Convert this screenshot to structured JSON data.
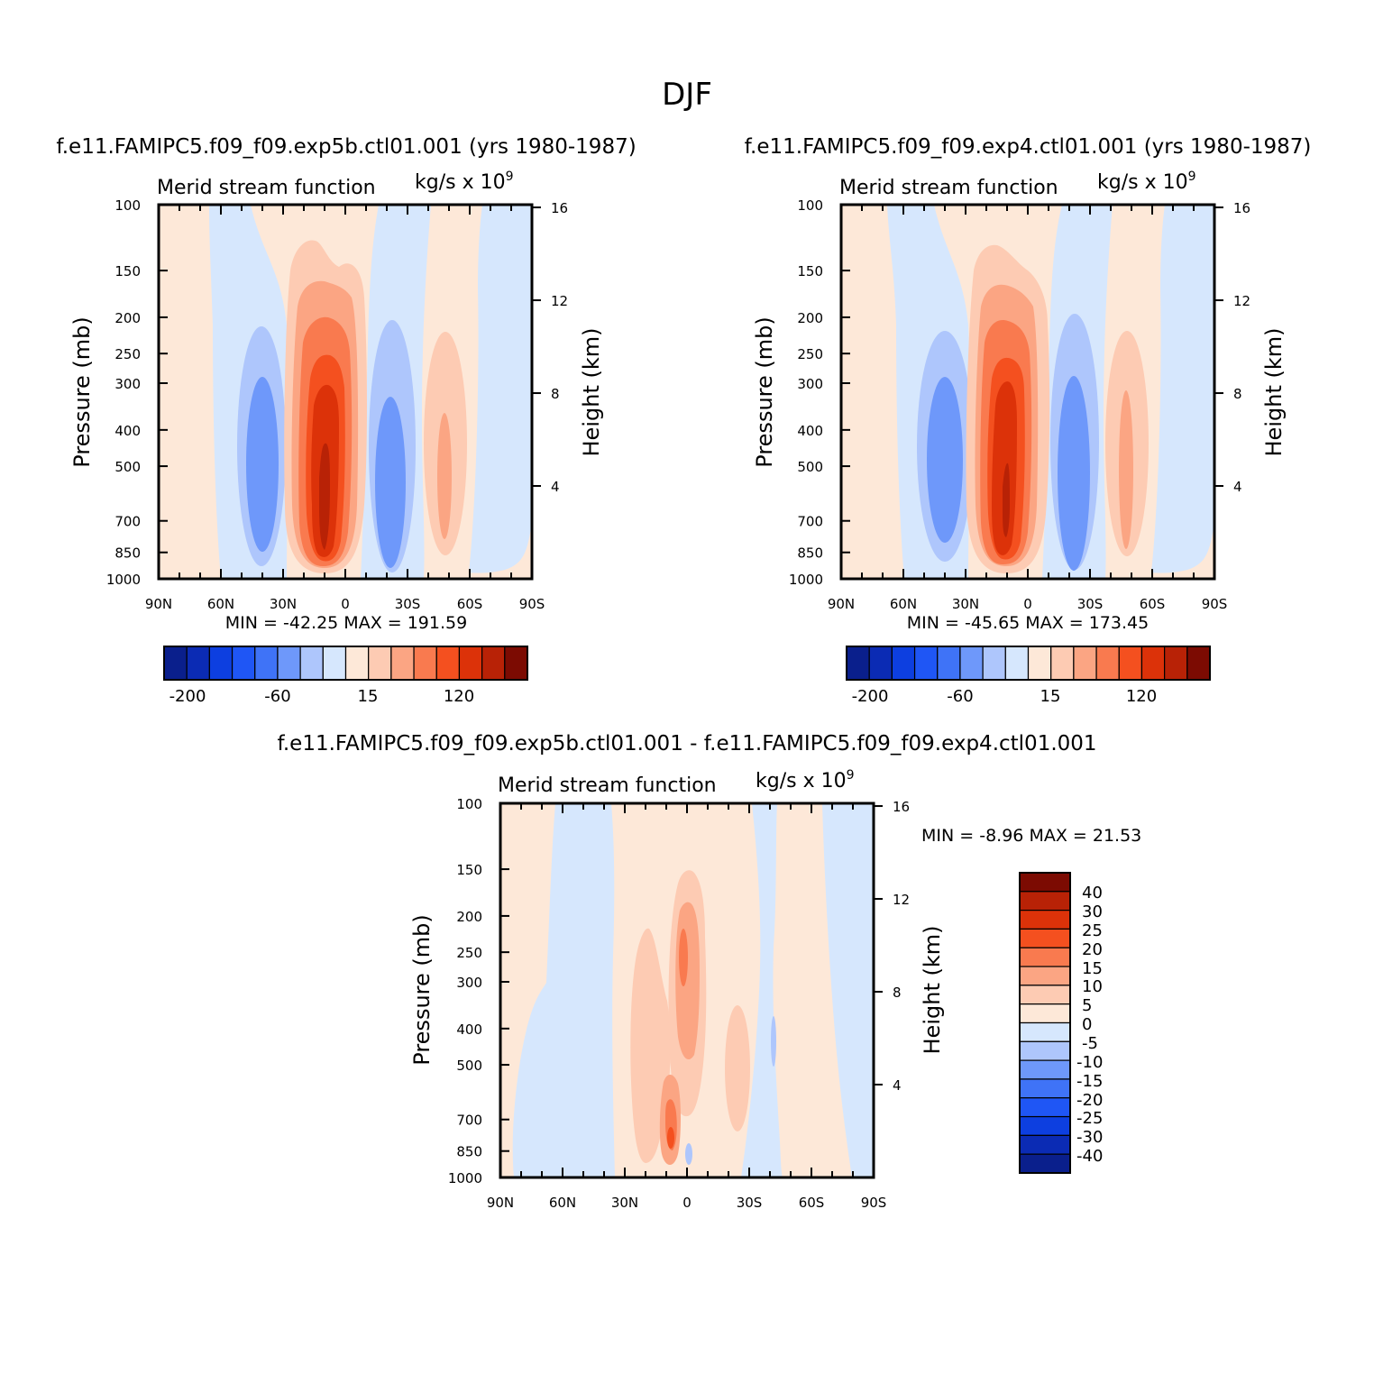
{
  "figure": {
    "title": "DJF"
  },
  "colors": {
    "negative": [
      "#0a1f8c",
      "#0b2bb4",
      "#0d3fe0",
      "#1f56f5",
      "#3f73f7",
      "#6e98fa",
      "#aec6fc",
      "#d6e7fd"
    ],
    "positive": [
      "#fde8d8",
      "#fdcbb3",
      "#fba583",
      "#f97a4f",
      "#f4501f",
      "#dc3209",
      "#b82206",
      "#7c0b02"
    ]
  },
  "panels": [
    {
      "id": "control",
      "title": "f.e11.FAMIPC5.f09_f09.exp5b.ctl01.001 (yrs 1980-1987)",
      "left_label": "Merid stream function",
      "right_label": "kg/s x 10",
      "right_label_exp": "9",
      "ylabel": "Pressure (mb)",
      "ylabel_right": "Height (km)",
      "min_label": "MIN =",
      "min_value": "-42.25",
      "max_label": "MAX =",
      "max_value": "191.59"
    },
    {
      "id": "test",
      "title": "f.e11.FAMIPC5.f09_f09.exp4.ctl01.001 (yrs 1980-1987)",
      "left_label": "Merid stream function",
      "right_label": "kg/s x 10",
      "right_label_exp": "9",
      "ylabel": "Pressure (mb)",
      "ylabel_right": "Height (km)",
      "min_label": "MIN =",
      "min_value": "-45.65",
      "max_label": "MAX =",
      "max_value": "173.45"
    },
    {
      "id": "difference",
      "title": "f.e11.FAMIPC5.f09_f09.exp5b.ctl01.001 - f.e11.FAMIPC5.f09_f09.exp4.ctl01.001",
      "left_label": "Merid stream function",
      "right_label": "kg/s x 10",
      "right_label_exp": "9",
      "ylabel": "Pressure (mb)",
      "ylabel_right": "Height (km)",
      "min_label": "MIN =",
      "min_value": "-8.96",
      "max_label": "MAX =",
      "max_value": "21.53"
    }
  ],
  "colorbar_labels": {
    "horizontal": [
      "-200",
      "-60",
      "15",
      "120"
    ],
    "vertical": [
      "40",
      "30",
      "25",
      "20",
      "15",
      "10",
      "5",
      "0",
      "-5",
      "-10",
      "-15",
      "-20",
      "-25",
      "-30",
      "-40"
    ]
  },
  "chart_data": [
    {
      "type": "heatmap",
      "title": "f.e11.FAMIPC5.f09_f09.exp5b.ctl01.001 (yrs 1980-1987)",
      "ylabel": "Pressure (mb)",
      "xlabel": "",
      "x_ticks": [
        "90N",
        "60N",
        "30N",
        "0",
        "30S",
        "60S",
        "90S"
      ],
      "x_ticks_deg": [
        90,
        60,
        30,
        0,
        -30,
        -60,
        -90
      ],
      "y_ticks": [
        100,
        150,
        200,
        250,
        300,
        400,
        500,
        700,
        850,
        1000
      ],
      "y_scale": "log",
      "ylim": [
        1000,
        100
      ],
      "y2_ticks": [
        4,
        8,
        12,
        16
      ],
      "y2_label": "Height (km)",
      "min": -42.25,
      "max": 191.59,
      "features": [
        {
          "type": "min",
          "lat": 41,
          "pres": 470,
          "value": -42.25
        },
        {
          "type": "max",
          "lat": 10,
          "pres": 620,
          "value": 191.59
        },
        {
          "type": "min",
          "lat": -22,
          "pres": 560,
          "value": -38
        },
        {
          "type": "max",
          "lat": -48,
          "pres": 520,
          "value": 25
        }
      ]
    },
    {
      "type": "heatmap",
      "title": "f.e11.FAMIPC5.f09_f09.exp4.ctl01.001 (yrs 1980-1987)",
      "ylabel": "Pressure (mb)",
      "xlabel": "",
      "x_ticks": [
        "90N",
        "60N",
        "30N",
        "0",
        "30S",
        "60S",
        "90S"
      ],
      "x_ticks_deg": [
        90,
        60,
        30,
        0,
        -30,
        -60,
        -90
      ],
      "y_ticks": [
        100,
        150,
        200,
        250,
        300,
        400,
        500,
        700,
        850,
        1000
      ],
      "y_scale": "log",
      "ylim": [
        1000,
        100
      ],
      "y2_ticks": [
        4,
        8,
        12,
        16
      ],
      "y2_label": "Height (km)",
      "min": -45.65,
      "max": 173.45,
      "features": [
        {
          "type": "min",
          "lat": 41,
          "pres": 480,
          "value": -45.65
        },
        {
          "type": "max",
          "lat": 10,
          "pres": 620,
          "value": 173.45
        },
        {
          "type": "min",
          "lat": -22,
          "pres": 560,
          "value": -40
        },
        {
          "type": "max",
          "lat": -48,
          "pres": 520,
          "value": 25
        }
      ]
    },
    {
      "type": "heatmap",
      "title": "f.e11.FAMIPC5.f09_f09.exp5b.ctl01.001 - f.e11.FAMIPC5.f09_f09.exp4.ctl01.001",
      "ylabel": "Pressure (mb)",
      "xlabel": "",
      "x_ticks": [
        "90N",
        "60N",
        "30N",
        "0",
        "30S",
        "60S",
        "90S"
      ],
      "x_ticks_deg": [
        90,
        60,
        30,
        0,
        -30,
        -60,
        -90
      ],
      "y_ticks": [
        100,
        150,
        200,
        250,
        300,
        400,
        500,
        700,
        850,
        1000
      ],
      "y_scale": "log",
      "ylim": [
        1000,
        100
      ],
      "y2_ticks": [
        4,
        8,
        12,
        16
      ],
      "y2_label": "Height (km)",
      "min": -8.96,
      "max": 21.53,
      "features": [
        {
          "type": "max",
          "lat": 8,
          "pres": 780,
          "value": 21.53
        },
        {
          "type": "max",
          "lat": 3,
          "pres": 270,
          "value": 15
        },
        {
          "type": "min",
          "lat": -42,
          "pres": 450,
          "value": -8.96
        }
      ]
    }
  ]
}
